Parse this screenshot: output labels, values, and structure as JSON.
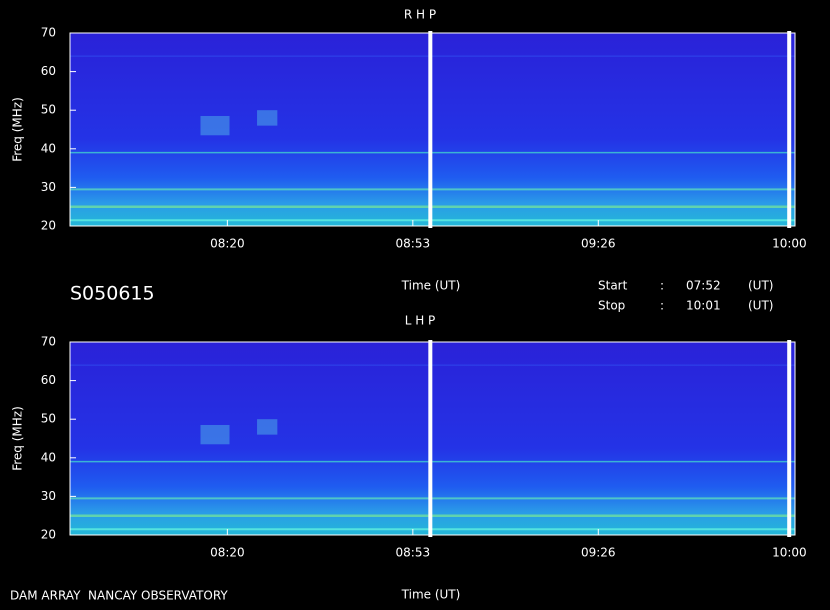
{
  "chart_data": [
    {
      "type": "spectrogram",
      "title": "R H P",
      "xlabel": "Time (UT)",
      "ylabel": "Freq (MHz)",
      "xlim": [
        472,
        601
      ],
      "xticks": [
        {
          "value": 500,
          "label": "08:20"
        },
        {
          "value": 533,
          "label": "08:53"
        },
        {
          "value": 566,
          "label": "09:26"
        },
        {
          "value": 600,
          "label": "10:00"
        }
      ],
      "ylim": [
        20,
        70
      ],
      "yticks": [
        20,
        30,
        40,
        50,
        60,
        70
      ]
    },
    {
      "type": "spectrogram",
      "title": "L H P",
      "xlabel": "Time (UT)",
      "ylabel": "Freq (MHz)",
      "xlim": [
        472,
        601
      ],
      "xticks": [
        {
          "value": 500,
          "label": "08:20"
        },
        {
          "value": 533,
          "label": "08:53"
        },
        {
          "value": 566,
          "label": "09:26"
        },
        {
          "value": 600,
          "label": "10:00"
        }
      ],
      "ylim": [
        20,
        70
      ],
      "yticks": [
        20,
        30,
        40,
        50,
        60,
        70
      ]
    }
  ],
  "header": {
    "session": "S050615",
    "start_label": "Start",
    "start_sep": ":",
    "start": "07:52",
    "start_unit": "(UT)",
    "stop_label": "Stop",
    "stop_sep": ":",
    "stop": "10:01",
    "stop_unit": "(UT)"
  },
  "footer": {
    "text": "DAM ARRAY  NANCAY OBSERVATORY"
  }
}
